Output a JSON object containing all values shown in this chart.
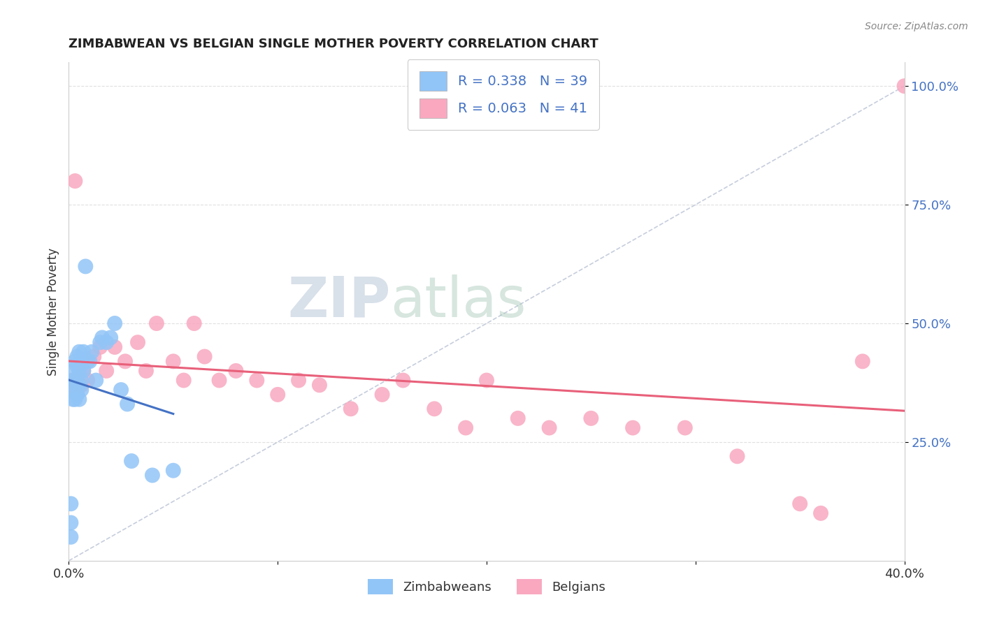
{
  "title": "ZIMBABWEAN VS BELGIAN SINGLE MOTHER POVERTY CORRELATION CHART",
  "source": "Source: ZipAtlas.com",
  "ylabel": "Single Mother Poverty",
  "xlim": [
    0.0,
    0.4
  ],
  "ylim": [
    0.0,
    1.05
  ],
  "yticks": [
    0.25,
    0.5,
    0.75,
    1.0
  ],
  "ytick_labels": [
    "25.0%",
    "50.0%",
    "75.0%",
    "100.0%"
  ],
  "xticks": [
    0.0,
    0.1,
    0.2,
    0.3,
    0.4
  ],
  "xtick_labels": [
    "0.0%",
    "",
    "",
    "",
    "40.0%"
  ],
  "zimbabwe_color": "#92C5F7",
  "belgium_color": "#F9A8C0",
  "zimbabwe_line_color": "#4472C4",
  "belgium_line_color": "#E8607A",
  "background_color": "#FFFFFF",
  "grid_color": "#E0E0E0",
  "diag_color": "#C0C8D8",
  "zimbabwe_x": [
    0.001,
    0.001,
    0.001,
    0.002,
    0.002,
    0.002,
    0.002,
    0.003,
    0.003,
    0.003,
    0.003,
    0.004,
    0.004,
    0.004,
    0.004,
    0.005,
    0.005,
    0.005,
    0.005,
    0.006,
    0.006,
    0.006,
    0.007,
    0.007,
    0.008,
    0.009,
    0.01,
    0.011,
    0.013,
    0.015,
    0.016,
    0.018,
    0.02,
    0.022,
    0.025,
    0.028,
    0.03,
    0.04,
    0.05
  ],
  "zimbabwe_y": [
    0.05,
    0.08,
    0.12,
    0.34,
    0.37,
    0.38,
    0.4,
    0.34,
    0.36,
    0.38,
    0.42,
    0.35,
    0.38,
    0.41,
    0.43,
    0.34,
    0.37,
    0.4,
    0.44,
    0.36,
    0.38,
    0.42,
    0.4,
    0.44,
    0.62,
    0.42,
    0.42,
    0.44,
    0.38,
    0.46,
    0.47,
    0.46,
    0.47,
    0.5,
    0.36,
    0.33,
    0.21,
    0.18,
    0.19
  ],
  "belgium_x": [
    0.001,
    0.002,
    0.003,
    0.005,
    0.006,
    0.007,
    0.009,
    0.012,
    0.015,
    0.018,
    0.022,
    0.027,
    0.033,
    0.037,
    0.042,
    0.05,
    0.055,
    0.06,
    0.065,
    0.072,
    0.08,
    0.09,
    0.1,
    0.11,
    0.12,
    0.135,
    0.15,
    0.16,
    0.175,
    0.19,
    0.2,
    0.215,
    0.23,
    0.25,
    0.27,
    0.295,
    0.32,
    0.35,
    0.36,
    0.38,
    0.4
  ],
  "belgium_y": [
    0.37,
    0.38,
    0.8,
    0.37,
    0.37,
    0.4,
    0.38,
    0.43,
    0.45,
    0.4,
    0.45,
    0.42,
    0.46,
    0.4,
    0.5,
    0.42,
    0.38,
    0.5,
    0.43,
    0.38,
    0.4,
    0.38,
    0.35,
    0.38,
    0.37,
    0.32,
    0.35,
    0.38,
    0.32,
    0.28,
    0.38,
    0.3,
    0.28,
    0.3,
    0.28,
    0.28,
    0.22,
    0.12,
    0.1,
    0.42,
    1.0
  ],
  "diag_line_x": [
    0.0,
    0.4
  ],
  "diag_line_y": [
    0.0,
    1.0
  ]
}
